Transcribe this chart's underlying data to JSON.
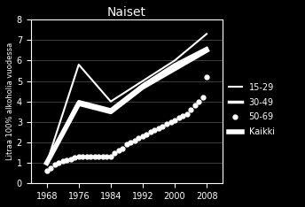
{
  "title": "Naiset",
  "ylabel": "Litraa 100% alkoholia vuodessa",
  "background_color": "#000000",
  "text_color": "#ffffff",
  "ylim": [
    0,
    8
  ],
  "yticks": [
    0,
    1,
    2,
    3,
    4,
    5,
    6,
    7,
    8
  ],
  "xticks": [
    1968,
    1976,
    1984,
    1992,
    2000,
    2008
  ],
  "xlim": [
    1964,
    2012
  ],
  "series": {
    "15-29": {
      "x": [
        1968,
        1976,
        1984,
        1992,
        2000,
        2008
      ],
      "y": [
        1.0,
        5.8,
        4.0,
        5.0,
        6.0,
        7.3
      ],
      "color": "#ffffff",
      "linewidth": 1.5,
      "linestyle": "-",
      "zorder": 4
    },
    "30-49": {
      "x": [
        1968,
        1976,
        1984,
        1992,
        2000,
        2008
      ],
      "y": [
        1.0,
        4.0,
        3.6,
        4.8,
        5.8,
        6.6
      ],
      "color": "#ffffff",
      "linewidth": 2.5,
      "linestyle": "-",
      "zorder": 3
    },
    "50-69": {
      "x": [
        1968,
        1969,
        1970,
        1971,
        1972,
        1973,
        1974,
        1975,
        1976,
        1977,
        1978,
        1979,
        1980,
        1981,
        1982,
        1983,
        1984,
        1985,
        1986,
        1987,
        1988,
        1989,
        1990,
        1991,
        1992,
        1993,
        1994,
        1995,
        1996,
        1997,
        1998,
        1999,
        2000,
        2001,
        2002,
        2003,
        2004,
        2005,
        2006,
        2007,
        2008
      ],
      "y": [
        0.6,
        0.75,
        0.9,
        1.0,
        1.1,
        1.15,
        1.2,
        1.25,
        1.3,
        1.3,
        1.3,
        1.3,
        1.3,
        1.3,
        1.3,
        1.3,
        1.3,
        1.5,
        1.6,
        1.7,
        1.9,
        2.0,
        2.1,
        2.2,
        2.3,
        2.4,
        2.5,
        2.6,
        2.7,
        2.8,
        2.9,
        3.0,
        3.1,
        3.2,
        3.3,
        3.4,
        3.6,
        3.8,
        4.0,
        4.2,
        5.2
      ],
      "color": "#ffffff",
      "linewidth": 0,
      "linestyle": "none",
      "marker": "o",
      "markersize": 3.5,
      "zorder": 5
    },
    "Kaikki": {
      "x": [
        1968,
        1976,
        1984,
        1992,
        2000,
        2008
      ],
      "y": [
        1.0,
        3.9,
        3.5,
        4.7,
        5.6,
        6.5
      ],
      "color": "#ffffff",
      "linewidth": 4.0,
      "linestyle": "-",
      "zorder": 2
    }
  }
}
